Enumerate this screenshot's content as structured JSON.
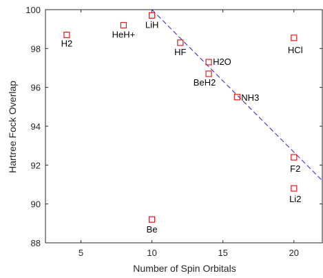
{
  "chart_data": {
    "type": "scatter",
    "xlabel": "Number of Spin Orbitals",
    "ylabel": "Hartree Fock Overlap",
    "xlim": [
      2.5,
      22
    ],
    "ylim": [
      88,
      100
    ],
    "xticks": [
      5,
      10,
      15,
      20
    ],
    "yticks": [
      88,
      90,
      92,
      94,
      96,
      98,
      100
    ],
    "grid": false,
    "marker_color": "#e8191c",
    "fit_line_color": "#1f1fd6",
    "points": [
      {
        "label": "H2",
        "x": 4,
        "y": 98.7
      },
      {
        "label": "HeH+",
        "x": 8,
        "y": 99.2
      },
      {
        "label": "LiH",
        "x": 10,
        "y": 99.7
      },
      {
        "label": "Be",
        "x": 10,
        "y": 89.2
      },
      {
        "label": "HF",
        "x": 12,
        "y": 98.3
      },
      {
        "label": "H2O",
        "x": 14,
        "y": 97.3
      },
      {
        "label": "BeH2",
        "x": 14,
        "y": 96.7
      },
      {
        "label": "NH3",
        "x": 16,
        "y": 95.5
      },
      {
        "label": "HCl",
        "x": 20,
        "y": 98.55
      },
      {
        "label": "F2",
        "x": 20,
        "y": 92.4
      },
      {
        "label": "Li2",
        "x": 20,
        "y": 90.8
      }
    ],
    "fit_line": {
      "style": "dashed",
      "x": [
        10,
        22
      ],
      "y": [
        100,
        91.2
      ]
    }
  }
}
